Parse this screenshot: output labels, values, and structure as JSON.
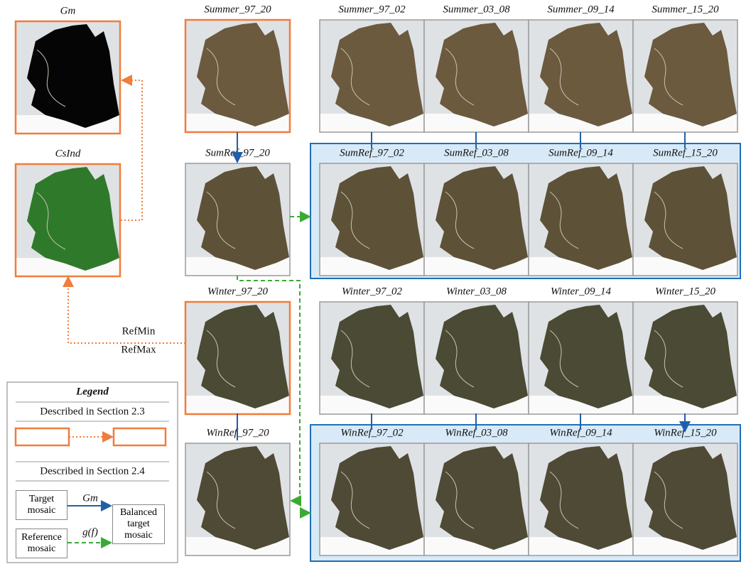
{
  "indicators": [
    "Gm",
    "CsInd"
  ],
  "summer": {
    "full": "Summer_97_20",
    "periods": [
      "Summer_97_02",
      "Summer_03_08",
      "Summer_09_14",
      "Summer_15_20"
    ]
  },
  "summer_ref": {
    "full": "SumRef_97_20",
    "periods": [
      "SumRef_97_02",
      "SumRef_03_08",
      "SumRef_09_14",
      "SumRef_15_20"
    ]
  },
  "winter": {
    "full": "Winter_97_20",
    "periods": [
      "Winter_97_02",
      "Winter_03_08",
      "Winter_09_14",
      "Winter_15_20"
    ]
  },
  "winter_ref": {
    "full": "WinRef_97_20",
    "periods": [
      "WinRef_97_02",
      "WinRef_03_08",
      "WinRef_09_14",
      "WinRef_15_20"
    ]
  },
  "connectors": {
    "ref_min": "RefMin",
    "ref_max": "RefMax"
  },
  "legend": {
    "title": "Legend",
    "section_a": "Described in Section 2.3",
    "section_b": "Described in Section 2.4",
    "target": "Target mosaic",
    "reference": "Reference mosaic",
    "balanced": "Balanced target mosaic",
    "target_arrow": "Gm",
    "reference_arrow": "g(f)"
  }
}
